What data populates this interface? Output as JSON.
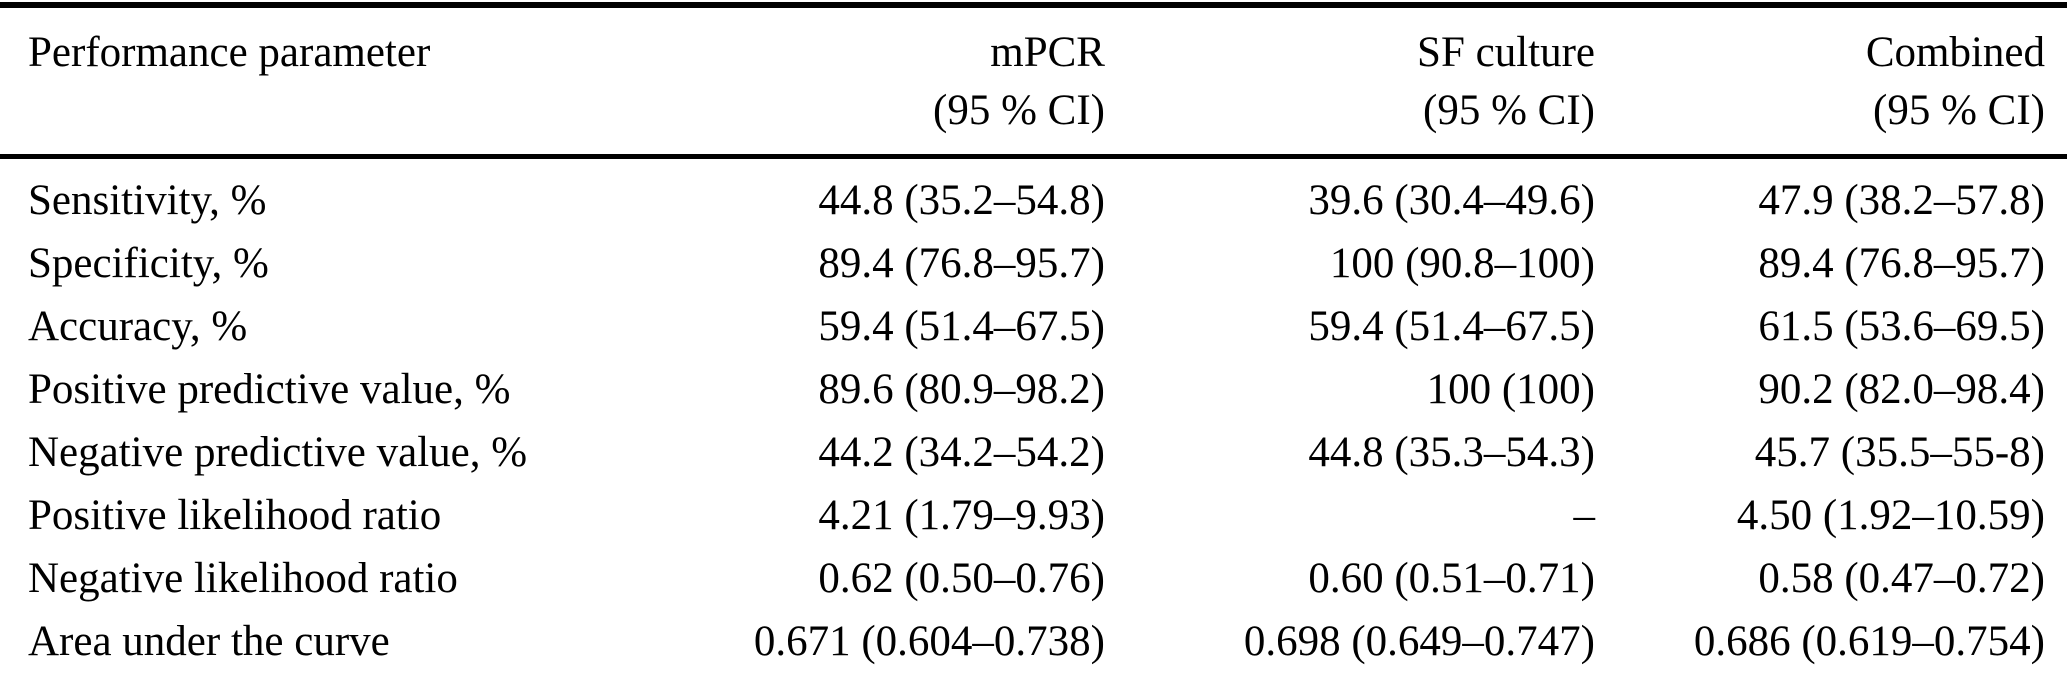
{
  "table": {
    "columns": [
      {
        "label": "Performance parameter",
        "sub": ""
      },
      {
        "label": "mPCR",
        "sub": "(95 % CI)"
      },
      {
        "label": "SF culture",
        "sub": "(95 % CI)"
      },
      {
        "label": "Combined",
        "sub": "(95 % CI)"
      }
    ],
    "rows": [
      {
        "param": "Sensitivity, %",
        "mpcr": "44.8 (35.2–54.8)",
        "sf": "39.6 (30.4–49.6)",
        "combined": "47.9 (38.2–57.8)"
      },
      {
        "param": "Specificity, %",
        "mpcr": "89.4 (76.8–95.7)",
        "sf": "100 (90.8–100)",
        "combined": "89.4 (76.8–95.7)"
      },
      {
        "param": "Accuracy, %",
        "mpcr": "59.4 (51.4–67.5)",
        "sf": "59.4 (51.4–67.5)",
        "combined": "61.5 (53.6–69.5)"
      },
      {
        "param": "Positive predictive value, %",
        "mpcr": "89.6 (80.9–98.2)",
        "sf": "100 (100)",
        "combined": "90.2 (82.0–98.4)"
      },
      {
        "param": "Negative predictive value, %",
        "mpcr": "44.2 (34.2–54.2)",
        "sf": "44.8 (35.3–54.3)",
        "combined": "45.7 (35.5–55-8)"
      },
      {
        "param": "Positive likelihood ratio",
        "mpcr": "4.21 (1.79–9.93)",
        "sf": "–",
        "combined": "4.50 (1.92–10.59)"
      },
      {
        "param": "Negative likelihood ratio",
        "mpcr": "0.62 (0.50–0.76)",
        "sf": "0.60 (0.51–0.71)",
        "combined": "0.58 (0.47–0.72)"
      },
      {
        "param": "Area under the curve",
        "mpcr": "0.671 (0.604–0.738)",
        "sf": "0.698 (0.649–0.747)",
        "combined": "0.686 (0.619–0.754)"
      }
    ]
  }
}
